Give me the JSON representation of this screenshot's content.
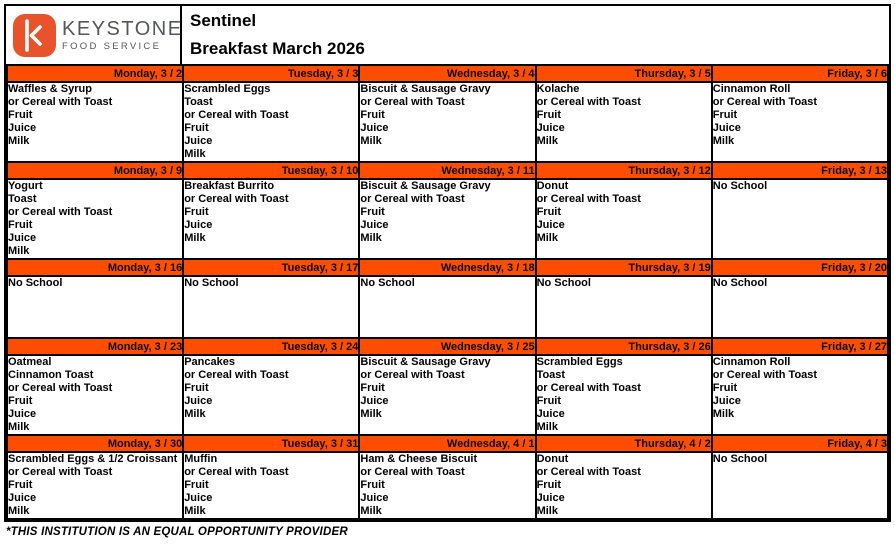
{
  "brand": {
    "logo_icon": "keystone-k-icon",
    "name_top": "KEYSTONE",
    "name_bottom": "FOOD SERVICE"
  },
  "title": {
    "school": "Sentinel",
    "menu": "Breakfast March 2026"
  },
  "colors": {
    "header_orange": "#FF4D00",
    "logo_orange": "#E8532B",
    "border_black": "#000000",
    "wordmark_gray": "#54565A"
  },
  "footer_note": "*THIS INSTITUTION IS AN EQUAL OPPORTUNITY PROVIDER",
  "weeks": [
    {
      "days": [
        {
          "header": "Monday, 3 / 2",
          "items": [
            "Waffles & Syrup",
            "or Cereal with Toast",
            "Fruit",
            "Juice",
            "Milk"
          ]
        },
        {
          "header": "Tuesday, 3 / 3",
          "items": [
            "Scrambled Eggs",
            "Toast",
            "or Cereal with Toast",
            "Fruit",
            "Juice",
            "Milk"
          ]
        },
        {
          "header": "Wednesday, 3 / 4",
          "items": [
            "Biscuit & Sausage Gravy",
            "or Cereal with Toast",
            "Fruit",
            "Juice",
            "Milk"
          ]
        },
        {
          "header": "Thursday, 3 / 5",
          "items": [
            "Kolache",
            "or Cereal with Toast",
            "Fruit",
            "Juice",
            "Milk"
          ]
        },
        {
          "header": "Friday, 3 / 6",
          "items": [
            "Cinnamon Roll",
            "or Cereal with Toast",
            "Fruit",
            "Juice",
            "Milk"
          ]
        }
      ]
    },
    {
      "days": [
        {
          "header": "Monday, 3 / 9",
          "items": [
            "Yogurt",
            "Toast",
            "or Cereal with Toast",
            "Fruit",
            "Juice",
            "Milk"
          ]
        },
        {
          "header": "Tuesday, 3 / 10",
          "items": [
            "Breakfast Burrito",
            "or Cereal with Toast",
            "Fruit",
            "Juice",
            "Milk"
          ]
        },
        {
          "header": "Wednesday, 3 / 11",
          "items": [
            "Biscuit & Sausage Gravy",
            "or Cereal with Toast",
            "Fruit",
            "Juice",
            "Milk"
          ]
        },
        {
          "header": "Thursday, 3 / 12",
          "items": [
            "Donut",
            "or Cereal with Toast",
            "Fruit",
            "Juice",
            "Milk"
          ]
        },
        {
          "header": "Friday, 3 / 13",
          "items": [
            "No School"
          ]
        }
      ]
    },
    {
      "days": [
        {
          "header": "Monday, 3 / 16",
          "items": [
            "No School"
          ]
        },
        {
          "header": "Tuesday, 3 / 17",
          "items": [
            "No School"
          ]
        },
        {
          "header": "Wednesday, 3 / 18",
          "items": [
            "No School"
          ]
        },
        {
          "header": "Thursday, 3 / 19",
          "items": [
            "No School"
          ]
        },
        {
          "header": "Friday, 3 / 20",
          "items": [
            "No School"
          ]
        }
      ]
    },
    {
      "days": [
        {
          "header": "Monday, 3 / 23",
          "items": [
            "Oatmeal",
            "Cinnamon Toast",
            "or Cereal with Toast",
            "Fruit",
            "Juice",
            "Milk"
          ]
        },
        {
          "header": "Tuesday, 3 / 24",
          "items": [
            "Pancakes",
            "or Cereal with Toast",
            "Fruit",
            "Juice",
            "Milk"
          ]
        },
        {
          "header": "Wednesday, 3 / 25",
          "items": [
            "Biscuit & Sausage Gravy",
            "or Cereal with Toast",
            "Fruit",
            "Juice",
            "Milk"
          ]
        },
        {
          "header": "Thursday, 3 / 26",
          "items": [
            "Scrambled Eggs",
            "Toast",
            "or Cereal with Toast",
            "Fruit",
            "Juice",
            "Milk"
          ]
        },
        {
          "header": "Friday, 3 / 27",
          "items": [
            "Cinnamon Roll",
            "or Cereal with Toast",
            "Fruit",
            "Juice",
            "Milk"
          ]
        }
      ]
    },
    {
      "days": [
        {
          "header": "Monday, 3 / 30",
          "items": [
            "Scrambled Eggs & 1/2 Croissant",
            "or Cereal with Toast",
            "Fruit",
            "Juice",
            "Milk"
          ]
        },
        {
          "header": "Tuesday, 3 / 31",
          "items": [
            "Muffin",
            "or Cereal with Toast",
            "Fruit",
            "Juice",
            "Milk"
          ]
        },
        {
          "header": "Wednesday, 4 / 1",
          "items": [
            "Ham & Cheese Biscuit",
            "or Cereal with Toast",
            "Fruit",
            "Juice",
            "Milk"
          ]
        },
        {
          "header": "Thursday, 4 / 2",
          "items": [
            "Donut",
            "or Cereal with Toast",
            "Fruit",
            "Juice",
            "Milk"
          ]
        },
        {
          "header": "Friday, 4 / 3",
          "items": [
            "No School"
          ]
        }
      ]
    }
  ]
}
